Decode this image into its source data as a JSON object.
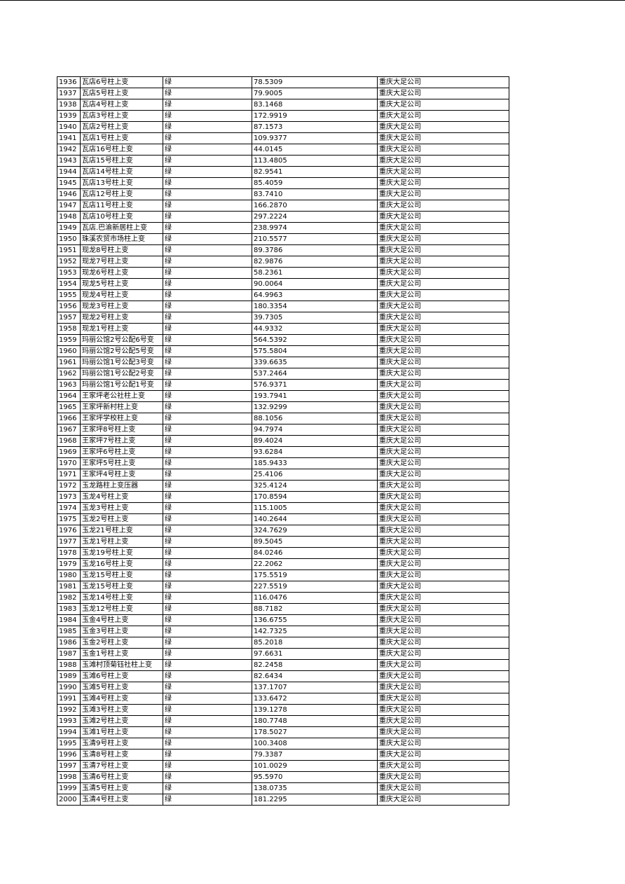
{
  "table": {
    "company": "重庆大足公司",
    "rows": [
      [
        "1936",
        "瓦店6号柱上变",
        "绿",
        "78.5309"
      ],
      [
        "1937",
        "瓦店5号柱上变",
        "绿",
        "79.9005"
      ],
      [
        "1938",
        "瓦店4号柱上变",
        "绿",
        "83.1468"
      ],
      [
        "1939",
        "瓦店3号柱上变",
        "绿",
        "172.9919"
      ],
      [
        "1940",
        "瓦店2号柱上变",
        "绿",
        "87.1573"
      ],
      [
        "1941",
        "瓦店1号柱上变",
        "绿",
        "109.9377"
      ],
      [
        "1942",
        "瓦店16号柱上变",
        "绿",
        "44.0145"
      ],
      [
        "1943",
        "瓦店15号柱上变",
        "绿",
        "113.4805"
      ],
      [
        "1944",
        "瓦店14号柱上变",
        "绿",
        "82.9541"
      ],
      [
        "1945",
        "瓦店13号柱上变",
        "绿",
        "85.4059"
      ],
      [
        "1946",
        "瓦店12号柱上变",
        "绿",
        "83.7410"
      ],
      [
        "1947",
        "瓦店11号柱上变",
        "绿",
        "166.2870"
      ],
      [
        "1948",
        "瓦店10号柱上变",
        "绿",
        "297.2224"
      ],
      [
        "1949",
        "瓦店.巴渝新居柱上变",
        "绿",
        "238.9974"
      ],
      [
        "1950",
        "珠溪农贸市场柱上变",
        "绿",
        "210.5577"
      ],
      [
        "1951",
        "现龙8号柱上变",
        "绿",
        "89.3786"
      ],
      [
        "1952",
        "现龙7号柱上变",
        "绿",
        "82.9876"
      ],
      [
        "1953",
        "现龙6号柱上变",
        "绿",
        "58.2361"
      ],
      [
        "1954",
        "现龙5号柱上变",
        "绿",
        "90.0064"
      ],
      [
        "1955",
        "现龙4号柱上变",
        "绿",
        "64.9963"
      ],
      [
        "1956",
        "现龙3号柱上变",
        "绿",
        "180.3354"
      ],
      [
        "1957",
        "现龙2号柱上变",
        "绿",
        "39.7305"
      ],
      [
        "1958",
        "现龙1号柱上变",
        "绿",
        "44.9332"
      ],
      [
        "1959",
        "玛丽公馆2号公配6号变",
        "绿",
        "564.5392"
      ],
      [
        "1960",
        "玛丽公馆2号公配5号变",
        "绿",
        "575.5804"
      ],
      [
        "1961",
        "玛丽公馆1号公配3号变",
        "绿",
        "339.6635"
      ],
      [
        "1962",
        "玛丽公馆1号公配2号变",
        "绿",
        "537.2464"
      ],
      [
        "1963",
        "玛丽公馆1号公配1号变",
        "绿",
        "576.9371"
      ],
      [
        "1964",
        "王家坪老公社柱上变",
        "绿",
        "193.7941"
      ],
      [
        "1965",
        "王家坪新村柱上变",
        "绿",
        "132.9299"
      ],
      [
        "1966",
        "王家坪学校柱上变",
        "绿",
        "88.1056"
      ],
      [
        "1967",
        "王家坪8号柱上变",
        "绿",
        "94.7974"
      ],
      [
        "1968",
        "王家坪7号柱上变",
        "绿",
        "89.4024"
      ],
      [
        "1969",
        "王家坪6号柱上变",
        "绿",
        "93.6284"
      ],
      [
        "1970",
        "王家坪5号柱上变",
        "绿",
        "185.9433"
      ],
      [
        "1971",
        "王家坪4号柱上变",
        "绿",
        "25.4106"
      ],
      [
        "1972",
        "玉龙路柱上变压器",
        "绿",
        "325.4124"
      ],
      [
        "1973",
        "玉龙4号柱上变",
        "绿",
        "170.8594"
      ],
      [
        "1974",
        "玉龙3号柱上变",
        "绿",
        "115.1005"
      ],
      [
        "1975",
        "玉龙2号柱上变",
        "绿",
        "140.2644"
      ],
      [
        "1976",
        "玉龙21号柱上变",
        "绿",
        "324.7629"
      ],
      [
        "1977",
        "玉龙1号柱上变",
        "绿",
        "89.5045"
      ],
      [
        "1978",
        "玉龙19号柱上变",
        "绿",
        "84.0246"
      ],
      [
        "1979",
        "玉龙16号柱上变",
        "绿",
        "22.2062"
      ],
      [
        "1980",
        "玉龙15号柱上变",
        "绿",
        "175.5519"
      ],
      [
        "1981",
        "玉龙15号柱上变",
        "绿",
        "227.5519"
      ],
      [
        "1982",
        "玉龙14号柱上变",
        "绿",
        "116.0476"
      ],
      [
        "1983",
        "玉龙12号柱上变",
        "绿",
        "88.7182"
      ],
      [
        "1984",
        "玉金4号柱上变",
        "绿",
        "136.6755"
      ],
      [
        "1985",
        "玉金3号柱上变",
        "绿",
        "142.7325"
      ],
      [
        "1986",
        "玉金2号柱上变",
        "绿",
        "85.2018"
      ],
      [
        "1987",
        "玉金1号柱上变",
        "绿",
        "97.6631"
      ],
      [
        "1988",
        "玉滩村顶菊钰社柱上变",
        "绿",
        "82.2458"
      ],
      [
        "1989",
        "玉滩6号柱上变",
        "绿",
        "82.6434"
      ],
      [
        "1990",
        "玉滩5号柱上变",
        "绿",
        "137.1707"
      ],
      [
        "1991",
        "玉滩4号柱上变",
        "绿",
        "133.6472"
      ],
      [
        "1992",
        "玉滩3号柱上变",
        "绿",
        "139.1278"
      ],
      [
        "1993",
        "玉滩2号柱上变",
        "绿",
        "180.7748"
      ],
      [
        "1994",
        "玉滩1号柱上变",
        "绿",
        "178.5027"
      ],
      [
        "1995",
        "玉清9号柱上变",
        "绿",
        "100.3408"
      ],
      [
        "1996",
        "玉清8号柱上变",
        "绿",
        "79.3387"
      ],
      [
        "1997",
        "玉清7号柱上变",
        "绿",
        "101.0029"
      ],
      [
        "1998",
        "玉清6号柱上变",
        "绿",
        "95.5970"
      ],
      [
        "1999",
        "玉清5号柱上变",
        "绿",
        "138.0735"
      ],
      [
        "2000",
        "玉清4号柱上变",
        "绿",
        "181.2295"
      ]
    ]
  }
}
